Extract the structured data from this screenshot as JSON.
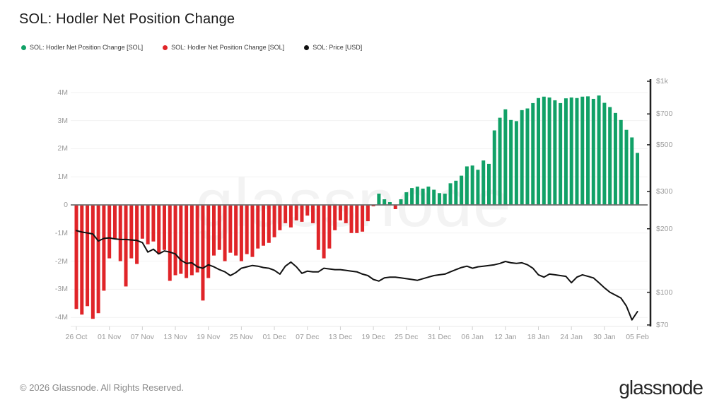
{
  "header": {
    "title": "SOL: Hodler Net Position Change"
  },
  "legend": {
    "items": [
      {
        "label": "SOL: Hodler Net Position Change [SOL]",
        "color": "#11a167"
      },
      {
        "label": "SOL: Hodler Net Position Change [SOL]",
        "color": "#e02428"
      },
      {
        "label": "SOL: Price [USD]",
        "color": "#111111"
      }
    ]
  },
  "watermark": "glassnode",
  "footer": {
    "copyright": "© 2026 Glassnode. All Rights Reserved.",
    "brand": "glassnode"
  },
  "chart_data": {
    "type": "mixed",
    "title": "SOL: Hodler Net Position Change",
    "x": [
      "26 Oct",
      "27 Oct",
      "28 Oct",
      "29 Oct",
      "30 Oct",
      "31 Oct",
      "01 Nov",
      "02 Nov",
      "03 Nov",
      "04 Nov",
      "05 Nov",
      "06 Nov",
      "07 Nov",
      "08 Nov",
      "09 Nov",
      "10 Nov",
      "11 Nov",
      "12 Nov",
      "13 Nov",
      "14 Nov",
      "15 Nov",
      "16 Nov",
      "17 Nov",
      "18 Nov",
      "19 Nov",
      "20 Nov",
      "21 Nov",
      "22 Nov",
      "23 Nov",
      "24 Nov",
      "25 Nov",
      "26 Nov",
      "27 Nov",
      "28 Nov",
      "29 Nov",
      "30 Nov",
      "01 Dec",
      "02 Dec",
      "03 Dec",
      "04 Dec",
      "05 Dec",
      "06 Dec",
      "07 Dec",
      "08 Dec",
      "09 Dec",
      "10 Dec",
      "11 Dec",
      "12 Dec",
      "13 Dec",
      "14 Dec",
      "15 Dec",
      "16 Dec",
      "17 Dec",
      "18 Dec",
      "19 Dec",
      "20 Dec",
      "21 Dec",
      "22 Dec",
      "23 Dec",
      "24 Dec",
      "25 Dec",
      "26 Dec",
      "27 Dec",
      "28 Dec",
      "29 Dec",
      "30 Dec",
      "31 Dec",
      "01 Jan",
      "02 Jan",
      "03 Jan",
      "04 Jan",
      "05 Jan",
      "06 Jan",
      "07 Jan",
      "08 Jan",
      "09 Jan",
      "10 Jan",
      "11 Jan",
      "12 Jan",
      "13 Jan",
      "14 Jan",
      "15 Jan",
      "16 Jan",
      "17 Jan",
      "18 Jan",
      "19 Jan",
      "20 Jan",
      "21 Jan",
      "22 Jan",
      "23 Jan",
      "24 Jan",
      "25 Jan",
      "26 Jan",
      "27 Jan",
      "28 Jan",
      "29 Jan",
      "30 Jan",
      "31 Jan",
      "01 Feb",
      "02 Feb",
      "03 Feb",
      "04 Feb",
      "05 Feb"
    ],
    "series": [
      {
        "name": "SOL: Hodler Net Position Change [SOL]",
        "type": "bar",
        "axis": "left",
        "unit": "M SOL",
        "positive_color": "#11a167",
        "negative_color": "#e02428",
        "values": [
          -3.7,
          -3.9,
          -3.6,
          -4.05,
          -3.85,
          -3.05,
          -1.9,
          -1.2,
          -2.0,
          -2.9,
          -1.9,
          -2.1,
          -1.2,
          -1.4,
          -1.3,
          -1.75,
          -1.6,
          -2.7,
          -2.5,
          -2.45,
          -2.6,
          -2.5,
          -2.4,
          -3.4,
          -2.6,
          -1.8,
          -1.6,
          -2.0,
          -1.7,
          -1.8,
          -2.0,
          -1.75,
          -1.85,
          -1.55,
          -1.45,
          -1.35,
          -1.15,
          -0.9,
          -0.65,
          -0.8,
          -0.55,
          -0.6,
          -0.38,
          -0.65,
          -1.6,
          -1.9,
          -1.55,
          -0.9,
          -0.55,
          -0.65,
          -1.0,
          -1.0,
          -0.95,
          -0.58,
          -0.05,
          0.4,
          0.2,
          0.1,
          -0.15,
          0.2,
          0.45,
          0.6,
          0.65,
          0.58,
          0.65,
          0.54,
          0.42,
          0.4,
          0.77,
          0.86,
          1.04,
          1.37,
          1.4,
          1.25,
          1.58,
          1.46,
          2.65,
          3.1,
          3.4,
          3.02,
          2.98,
          3.37,
          3.43,
          3.62,
          3.8,
          3.85,
          3.82,
          3.72,
          3.62,
          3.79,
          3.82,
          3.8,
          3.85,
          3.86,
          3.77,
          3.89,
          3.63,
          3.48,
          3.27,
          3.02,
          2.67,
          2.4,
          1.85
        ]
      },
      {
        "name": "SOL: Price [USD]",
        "type": "line",
        "axis": "right",
        "unit": "USD",
        "color": "#111111",
        "values": [
          196,
          193,
          191,
          189,
          175,
          180,
          181,
          179,
          178,
          178,
          177,
          176,
          172,
          155,
          160,
          152,
          157,
          155,
          152,
          142,
          137,
          138,
          132,
          130,
          135,
          132,
          128,
          125,
          120,
          124,
          130,
          132,
          134,
          133,
          131,
          130,
          127,
          122,
          133,
          139,
          132,
          123,
          126,
          125,
          125,
          130,
          129,
          128,
          128,
          127,
          126,
          125,
          122,
          120,
          115,
          113,
          117,
          118,
          118,
          117,
          116,
          115,
          114,
          116,
          118,
          120,
          121,
          122,
          125,
          128,
          131,
          133,
          130,
          132,
          133,
          134,
          135,
          137,
          140,
          138,
          137,
          138,
          135,
          130,
          121,
          118,
          122,
          121,
          120,
          119,
          111,
          118,
          121,
          119,
          117,
          111,
          105,
          100,
          97,
          94,
          86,
          74,
          81
        ]
      }
    ],
    "left_axis": {
      "range": [
        -4.3,
        4.5
      ],
      "ticks": [
        {
          "label": "4M",
          "v": 4
        },
        {
          "label": "3M",
          "v": 3
        },
        {
          "label": "2M",
          "v": 2
        },
        {
          "label": "1M",
          "v": 1
        },
        {
          "label": "0",
          "v": 0
        },
        {
          "label": "-1M",
          "v": -1
        },
        {
          "label": "-2M",
          "v": -2
        },
        {
          "label": "-3M",
          "v": -3
        },
        {
          "label": "-4M",
          "v": -4
        }
      ]
    },
    "right_axis": {
      "scale": "log",
      "range": [
        70,
        1000
      ],
      "ticks": [
        {
          "label": "$1k",
          "p": 1000
        },
        {
          "label": "$700",
          "p": 700
        },
        {
          "label": "$500",
          "p": 500
        },
        {
          "label": "$300",
          "p": 300
        },
        {
          "label": "$200",
          "p": 200
        },
        {
          "label": "$100",
          "p": 100
        },
        {
          "label": "$70",
          "p": 70
        }
      ]
    },
    "x_ticks": [
      {
        "label": "26 Oct",
        "i": 0
      },
      {
        "label": "01 Nov",
        "i": 6
      },
      {
        "label": "07 Nov",
        "i": 12
      },
      {
        "label": "13 Nov",
        "i": 18
      },
      {
        "label": "19 Nov",
        "i": 24
      },
      {
        "label": "25 Nov",
        "i": 30
      },
      {
        "label": "01 Dec",
        "i": 36
      },
      {
        "label": "07 Dec",
        "i": 42
      },
      {
        "label": "13 Dec",
        "i": 48
      },
      {
        "label": "19 Dec",
        "i": 54
      },
      {
        "label": "25 Dec",
        "i": 60
      },
      {
        "label": "31 Dec",
        "i": 66
      },
      {
        "label": "06 Jan",
        "i": 72
      },
      {
        "label": "12 Jan",
        "i": 78
      },
      {
        "label": "18 Jan",
        "i": 84
      },
      {
        "label": "24 Jan",
        "i": 90
      },
      {
        "label": "30 Jan",
        "i": 96
      },
      {
        "label": "05 Feb",
        "i": 102
      }
    ],
    "colors": {
      "grid": "#f2f2f2",
      "zero_line": "#6e6e6e",
      "axis_baseline": "#e8e8e8",
      "tick_mark": "#d0d0d0",
      "right_axis_line": "#1f1f1f",
      "axis_text": "#9b9b9b"
    },
    "grid": true,
    "legend_position": "top-left"
  }
}
